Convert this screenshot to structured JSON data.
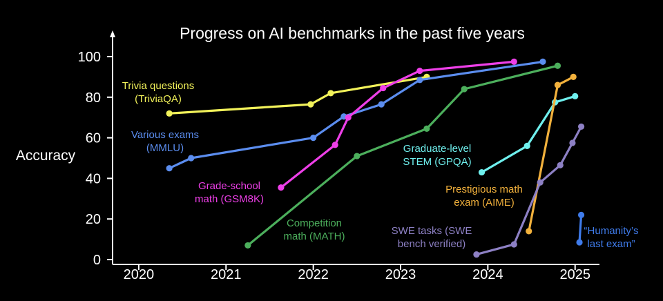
{
  "chart_data": {
    "type": "line",
    "title": "Progress on AI benchmarks in the past five years",
    "ylabel": "Accuracy",
    "xlabel": "",
    "xlim": [
      2019.7,
      2025.2
    ],
    "ylim": [
      0,
      100
    ],
    "x_ticks": [
      2020,
      2021,
      2022,
      2023,
      2024,
      2025
    ],
    "y_ticks": [
      0,
      20,
      40,
      60,
      80,
      100
    ],
    "grid": false,
    "background": "#000000",
    "series": [
      {
        "id": "triviaqa",
        "label_lines": [
          "Trivia questions",
          "(TriviaQA)"
        ],
        "color": "#f2f25a",
        "x": [
          2020.35,
          2021.97,
          2022.2,
          2023.3
        ],
        "y": [
          72,
          76.5,
          82,
          90
        ]
      },
      {
        "id": "mmlu",
        "label_lines": [
          "Various exams",
          "(MMLU)"
        ],
        "color": "#5b8def",
        "x": [
          2020.35,
          2020.6,
          2022.0,
          2022.35,
          2022.78,
          2023.22,
          2024.63
        ],
        "y": [
          45,
          50,
          60,
          70.5,
          76.5,
          88.5,
          97.5
        ]
      },
      {
        "id": "gsm8k",
        "label_lines": [
          "Grade-school",
          "math (GSM8K)"
        ],
        "color": "#ee3fe8",
        "x": [
          2021.63,
          2022.25,
          2022.4,
          2022.8,
          2023.22,
          2024.3
        ],
        "y": [
          35.5,
          56.5,
          70,
          84.5,
          93,
          97.5
        ]
      },
      {
        "id": "math",
        "label_lines": [
          "Competition",
          "math (MATH)"
        ],
        "color": "#4caf5c",
        "x": [
          2021.25,
          2022.5,
          2023.3,
          2023.73,
          2024.8
        ],
        "y": [
          7,
          51,
          64.5,
          84,
          95.5
        ]
      },
      {
        "id": "gpqa",
        "label_lines": [
          "Graduate-level",
          "STEM (GPQA)"
        ],
        "color": "#6ff0ee",
        "x": [
          2023.93,
          2024.45,
          2024.77,
          2025.0
        ],
        "y": [
          43,
          56,
          77.5,
          80.5
        ]
      },
      {
        "id": "aime",
        "label_lines": [
          "Prestigious math",
          "exam (AIME)"
        ],
        "color": "#f2b13c",
        "x": [
          2024.47,
          2024.8,
          2024.98
        ],
        "y": [
          14,
          86,
          90
        ]
      },
      {
        "id": "swe",
        "label_lines": [
          "SWE tasks (SWE",
          "bench verified)"
        ],
        "color": "#8d80c4",
        "x": [
          2023.87,
          2024.3,
          2024.6,
          2024.83,
          2024.97,
          2025.07
        ],
        "y": [
          2.5,
          7.5,
          38,
          46.5,
          57.5,
          65.5
        ]
      },
      {
        "id": "hle",
        "label_lines": [
          "“Humanity’s",
          "last exam”"
        ],
        "color": "#3f7bea",
        "x": [
          2025.05,
          2025.07
        ],
        "y": [
          8.5,
          22
        ]
      }
    ]
  }
}
